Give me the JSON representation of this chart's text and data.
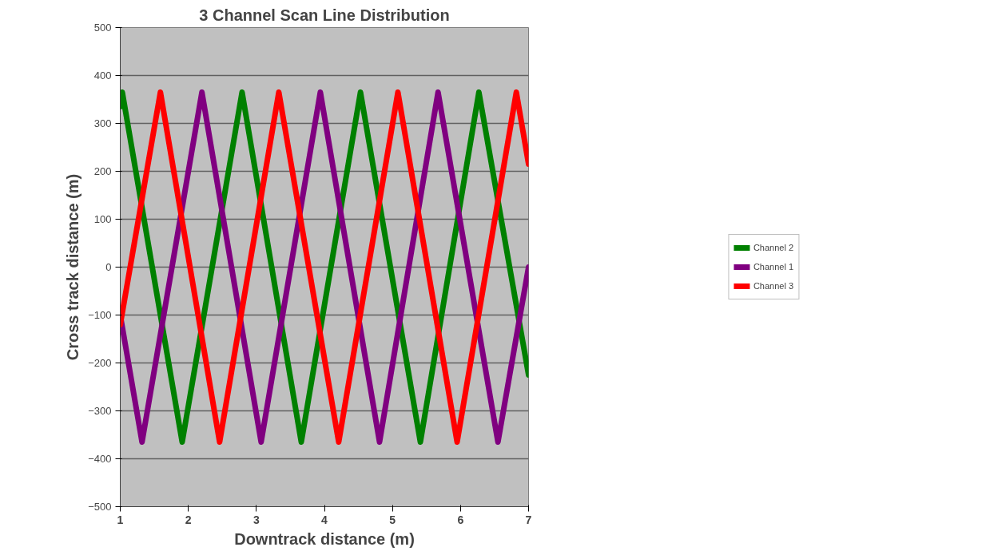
{
  "chart_data": {
    "type": "line",
    "title": "3 Channel Scan Line Distribution",
    "xlabel": "Downtrack distance (m)",
    "ylabel": "Cross track distance (m)",
    "xlim": [
      1,
      7
    ],
    "xticks": [
      1,
      2,
      3,
      4,
      5,
      6,
      7
    ],
    "ylim": [
      -500,
      500
    ],
    "yticks": [
      -500,
      -400,
      -300,
      -200,
      -100,
      0,
      100,
      200,
      300,
      400,
      500
    ],
    "grid": "y",
    "legend": "right",
    "marker": "none",
    "line_style": "solid",
    "series": [
      {
        "name": "Channel 2",
        "color": "#008000",
        "x": [
          1,
          1.03,
          1.91,
          2.79,
          3.66,
          4.53,
          5.41,
          6.27,
          7
        ],
        "values": [
          335,
          365,
          -365,
          365,
          -365,
          365,
          -365,
          365,
          -225
        ]
      },
      {
        "name": "Channel 1",
        "color": "#800080",
        "x": [
          1,
          1.32,
          2.2,
          3.07,
          3.94,
          4.81,
          5.67,
          6.55,
          7
        ],
        "values": [
          -100,
          -365,
          365,
          -365,
          365,
          -365,
          365,
          -365,
          0
        ]
      },
      {
        "name": "Channel 3",
        "color": "#ff0000",
        "x": [
          1,
          1.59,
          2.46,
          3.33,
          4.21,
          5.08,
          5.95,
          6.82,
          7
        ],
        "values": [
          -120,
          365,
          -365,
          365,
          -365,
          365,
          -365,
          365,
          215
        ]
      }
    ]
  }
}
